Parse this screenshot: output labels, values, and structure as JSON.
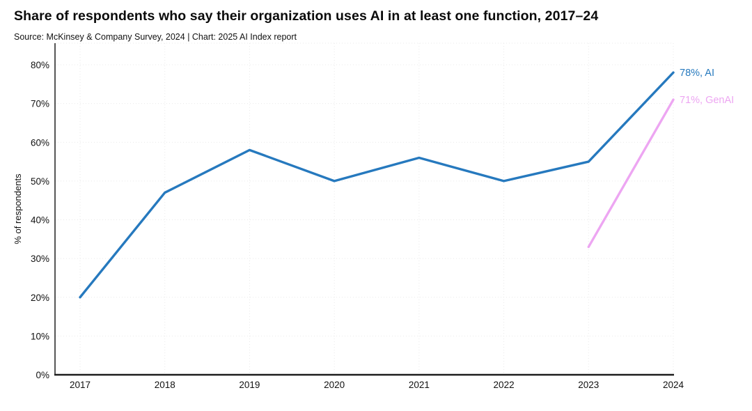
{
  "header": {
    "title": "Share of respondents who say their organization uses AI in at least one function, 2017–24",
    "subtitle": "Source: McKinsey & Company Survey, 2024 | Chart: 2025 AI Index report"
  },
  "chart_data": {
    "type": "line",
    "title": "Share of respondents who say their organization uses AI in at least one function, 2017–24",
    "subtitle": "Source: McKinsey & Company Survey, 2024 | Chart: 2025 AI Index report",
    "categories": [
      "2017",
      "2018",
      "2019",
      "2020",
      "2021",
      "2022",
      "2023",
      "2024"
    ],
    "series": [
      {
        "name": "AI",
        "color": "#2679BE",
        "end_label": "78%, AI",
        "points": [
          [
            2017,
            20
          ],
          [
            2018,
            47
          ],
          [
            2019,
            58
          ],
          [
            2020,
            50
          ],
          [
            2021,
            56
          ],
          [
            2022,
            50
          ],
          [
            2023,
            55
          ],
          [
            2024,
            78
          ]
        ]
      },
      {
        "name": "GenAI",
        "color": "#EDA6F2",
        "end_label": "71%, GenAI",
        "points": [
          [
            2023,
            33
          ],
          [
            2024,
            71
          ]
        ]
      }
    ],
    "xlabel": "",
    "ylabel": "% of respondents",
    "ylim": [
      0,
      80
    ],
    "ytick_step": 10,
    "ytick_suffix": "%",
    "grid": true,
    "legend_position": "end-of-line"
  }
}
